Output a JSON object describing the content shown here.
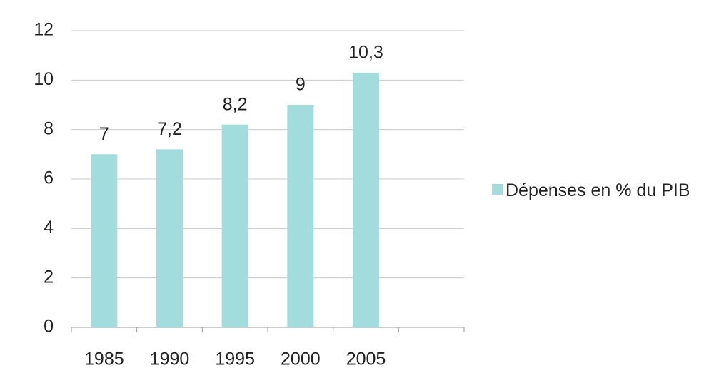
{
  "chart_data": {
    "type": "bar",
    "categories": [
      "1985",
      "1990",
      "1995",
      "2000",
      "2005",
      null
    ],
    "series": [
      {
        "name": "Dépenses en % du PIB",
        "color": "#a3dcdc",
        "values": [
          7,
          7.2,
          8.2,
          9,
          10.3,
          null
        ],
        "value_labels": [
          "7",
          "7,2",
          "8,2",
          "9",
          "10,3",
          null
        ]
      }
    ],
    "ylim": [
      0,
      12
    ],
    "yticks": [
      0,
      2,
      4,
      6,
      8,
      10,
      12
    ],
    "grid": true,
    "legend": "right"
  }
}
